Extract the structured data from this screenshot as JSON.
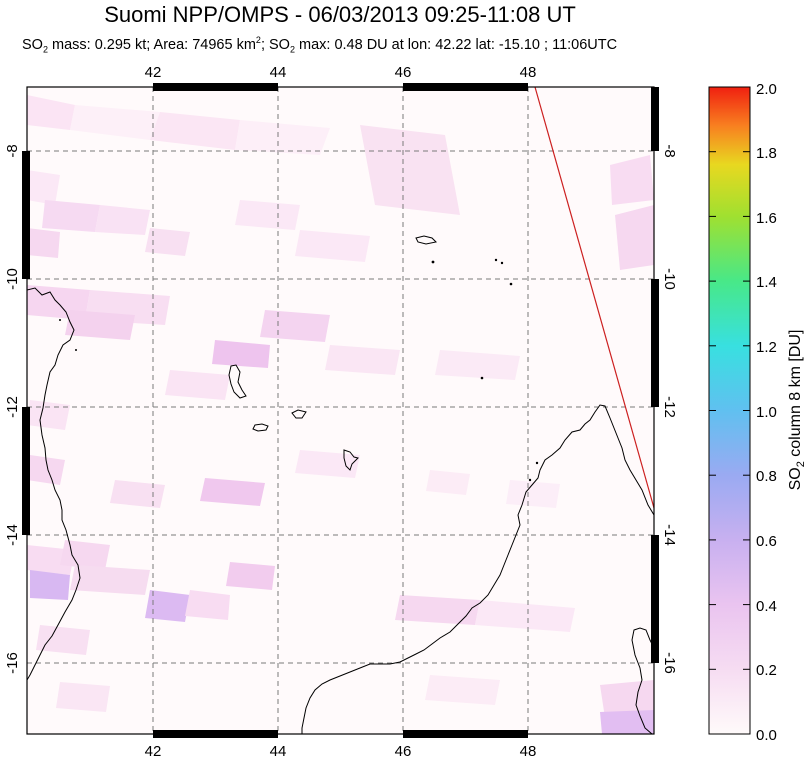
{
  "title": "Suomi NPP/OMPS - 06/03/2013 09:25-11:08 UT",
  "subtitle": {
    "part1": "SO",
    "sub1": "2",
    "part2": " mass: 0.295 kt; Area: 74965 km",
    "sup1": "2",
    "part3": "; SO",
    "sub2": "2",
    "part4": " max: 0.48 DU at lon: 42.22 lat: -15.10 ; 11:06UTC"
  },
  "map": {
    "lon_ticks": [
      "42",
      "44",
      "46",
      "48"
    ],
    "lat_ticks": [
      "-8",
      "-10",
      "-12",
      "-14",
      "-16"
    ],
    "lon_range": [
      40,
      50
    ],
    "lat_range": [
      -17.2,
      -7.0
    ]
  },
  "colorbar": {
    "label_prefix": "SO",
    "label_sub": "2",
    "label_suffix": " column 8 km [DU]",
    "ticks": [
      "2.0",
      "1.8",
      "1.6",
      "1.4",
      "1.2",
      "1.0",
      "0.8",
      "0.6",
      "0.4",
      "0.2",
      "0.0"
    ],
    "colors": [
      "#fffafa",
      "#f8e0f2",
      "#eec6ee",
      "#d8b4f0",
      "#aaa8f0",
      "#6fb8f0",
      "#38e0e8",
      "#40e890",
      "#8ce040",
      "#d8e020",
      "#f8c020",
      "#f87020",
      "#f02010"
    ]
  }
}
